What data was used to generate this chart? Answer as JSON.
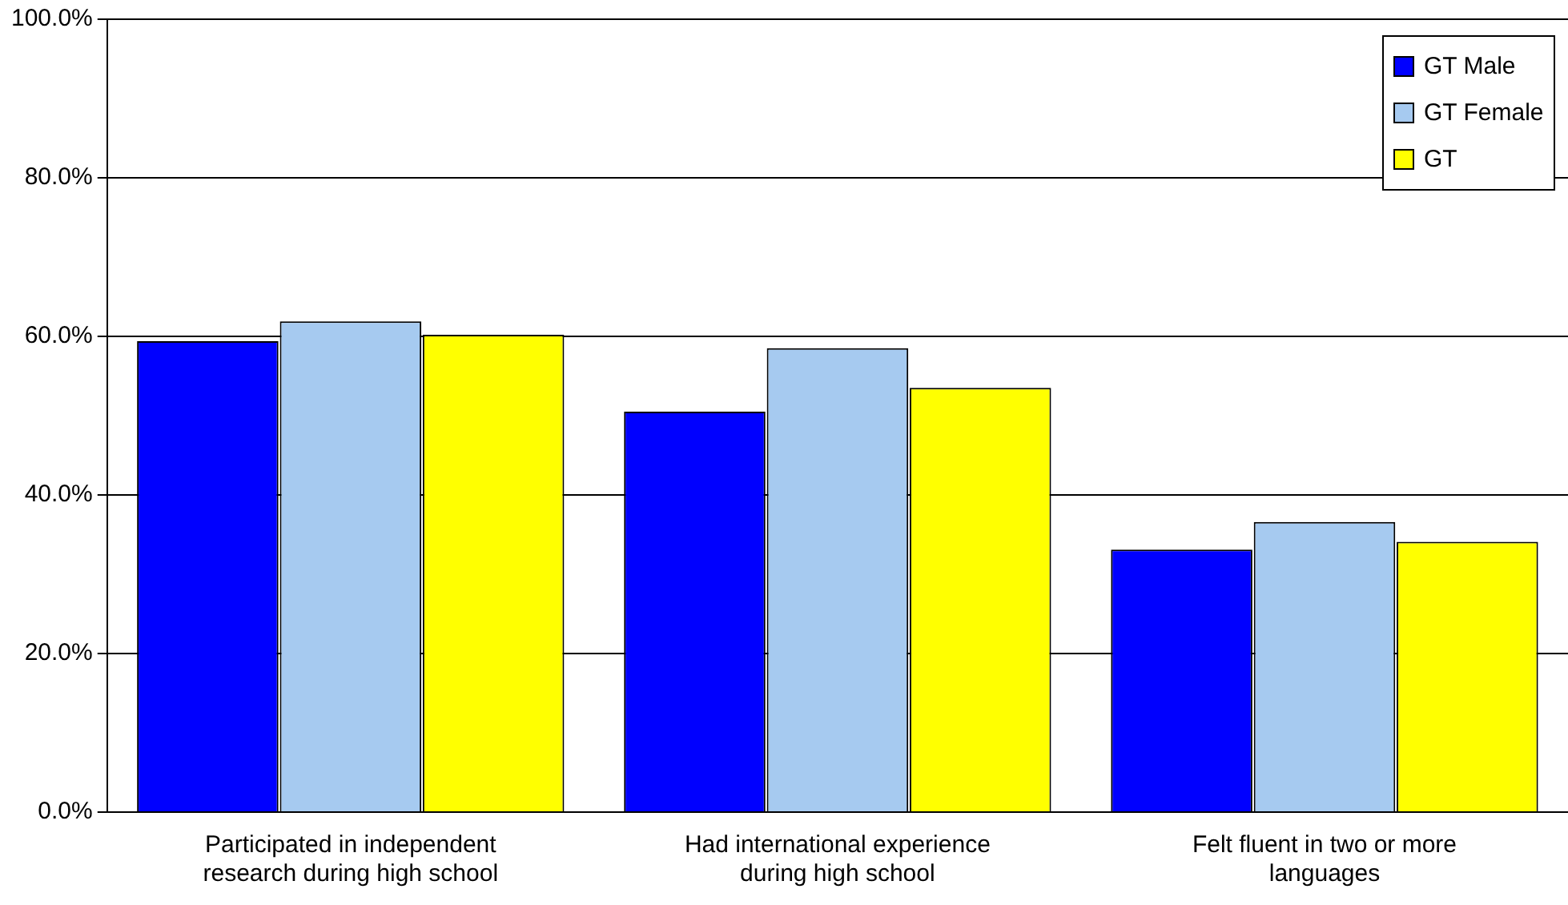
{
  "chart_data": {
    "type": "bar",
    "categories": [
      "Participated in independent research during high school",
      "Had international experience during high school",
      "Felt fluent in two or more languages"
    ],
    "series": [
      {
        "name": "GT Male",
        "color": "#0000ff",
        "values": [
          59.4,
          50.5,
          33.1
        ]
      },
      {
        "name": "GT Female",
        "color": "#a6caf0",
        "values": [
          61.9,
          58.5,
          36.6
        ]
      },
      {
        "name": "GT",
        "color": "#ffff00",
        "values": [
          60.2,
          53.5,
          34.1
        ]
      }
    ],
    "ylim": [
      0,
      100
    ],
    "yticks": [
      {
        "value": 0,
        "label": "0.0%"
      },
      {
        "value": 20,
        "label": "20.0%"
      },
      {
        "value": 40,
        "label": "40.0%"
      },
      {
        "value": 60,
        "label": "60.0%"
      },
      {
        "value": 80,
        "label": "80.0%"
      },
      {
        "value": 100,
        "label": "100.0%"
      }
    ],
    "grid": "y",
    "legend": "top right"
  }
}
